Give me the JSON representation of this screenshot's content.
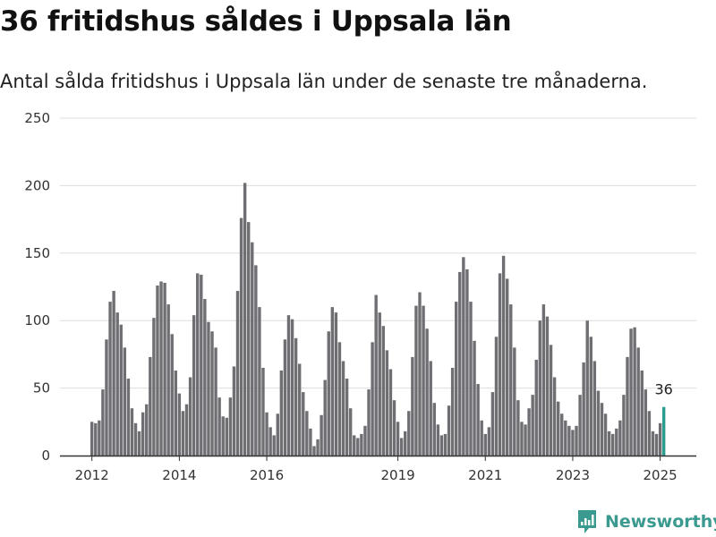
{
  "title": "36 fritidshus såldes i Uppsala län",
  "subtitle": "Antal sålda fritidshus i Uppsala län under de senaste tre månaderna.",
  "brand": {
    "name": "Newsworthy",
    "icon": "newsworthy-logo-icon"
  },
  "colors": {
    "bar": "#6f6e73",
    "highlight": "#2a9d8f",
    "grid": "#dddddd",
    "axis": "#333333",
    "brand": "#3a9a8f"
  },
  "chart_data": {
    "type": "bar",
    "title": "36 fritidshus såldes i Uppsala län",
    "subtitle": "Antal sålda fritidshus i Uppsala län under de senaste tre månaderna.",
    "xlabel": "",
    "ylabel": "",
    "ylim": [
      0,
      250
    ],
    "yticks": [
      0,
      50,
      100,
      150,
      200,
      250
    ],
    "xticks": [
      {
        "label": "2012",
        "index": 0
      },
      {
        "label": "2014",
        "index": 24
      },
      {
        "label": "2016",
        "index": 48
      },
      {
        "label": "2019",
        "index": 84
      },
      {
        "label": "2021",
        "index": 108
      },
      {
        "label": "2023",
        "index": 132
      },
      {
        "label": "2025",
        "index": 156
      }
    ],
    "grid": true,
    "series": [
      {
        "values": [
          25,
          24,
          26,
          49,
          86,
          114,
          122,
          106,
          97,
          80,
          57,
          35,
          24,
          18,
          32,
          38,
          73,
          102,
          126,
          129,
          128,
          112,
          90,
          63,
          46,
          33,
          38,
          58,
          104,
          135,
          134,
          116,
          99,
          92,
          80,
          43,
          29,
          28,
          43,
          66,
          122,
          176,
          202,
          173,
          158,
          141,
          110,
          65,
          32,
          21,
          15,
          31,
          63,
          86,
          104,
          101,
          87,
          68,
          47,
          33,
          20,
          7,
          12,
          30,
          56,
          92,
          110,
          106,
          84,
          70,
          57,
          35,
          15,
          13,
          16,
          22,
          49,
          84,
          119,
          106,
          96,
          78,
          64,
          41,
          25,
          13,
          18,
          33,
          73,
          111,
          121,
          111,
          94,
          70,
          39,
          23,
          15,
          16,
          37,
          65,
          114,
          136,
          147,
          138,
          114,
          85,
          53,
          26,
          16,
          21,
          47,
          88,
          135,
          148,
          131,
          112,
          80,
          41,
          25,
          23,
          35,
          45,
          71,
          100,
          112,
          103,
          82,
          58,
          40,
          31,
          26,
          22,
          19,
          22,
          45,
          69,
          100,
          88,
          70,
          48,
          39,
          31,
          18,
          16,
          20,
          26,
          45,
          73,
          94,
          95,
          80,
          63,
          49,
          33,
          18,
          16,
          24,
          36
        ]
      }
    ],
    "highlight_last": true,
    "annotations": [
      {
        "text": "36",
        "index": 157
      }
    ]
  }
}
